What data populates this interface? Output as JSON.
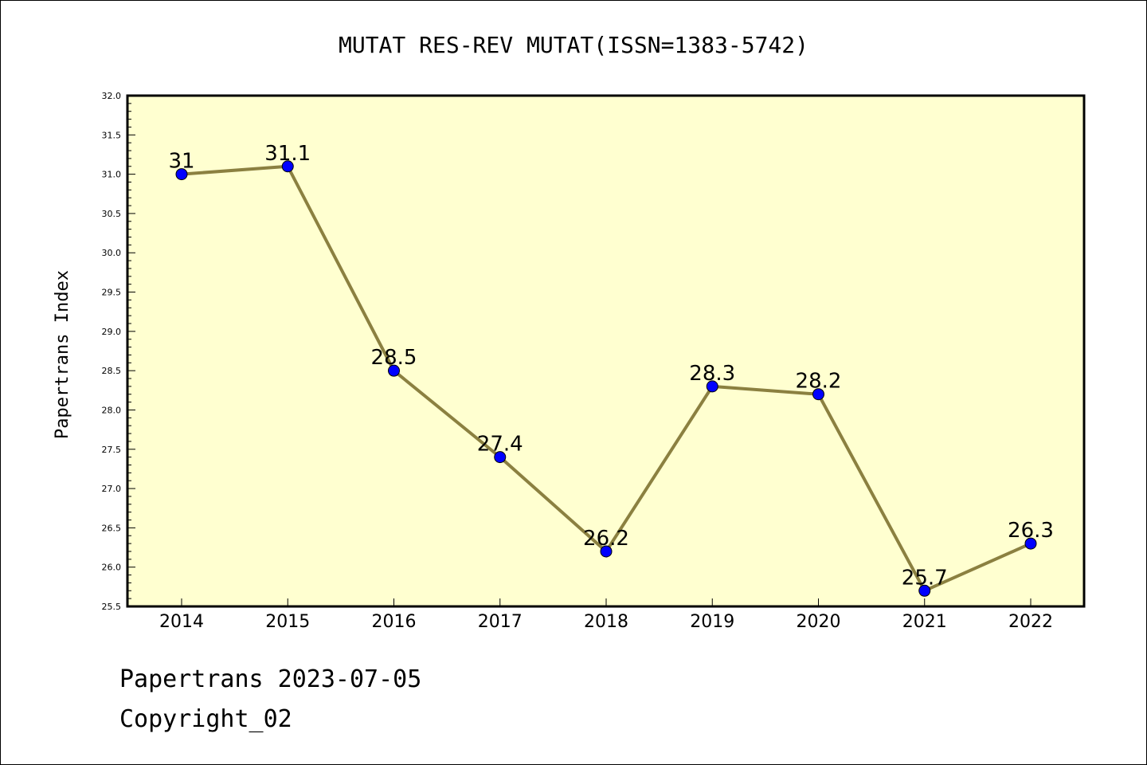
{
  "chart_data": {
    "type": "line",
    "title": "MUTAT RES-REV MUTAT(ISSN=1383-5742)",
    "xlabel": "",
    "ylabel": "Papertrans Index",
    "categories": [
      "2014",
      "2015",
      "2016",
      "2017",
      "2018",
      "2019",
      "2020",
      "2021",
      "2022"
    ],
    "series": [
      {
        "values": [
          31,
          31.1,
          28.5,
          27.4,
          26.2,
          28.3,
          28.2,
          25.7,
          26.3
        ],
        "data_labels": [
          "31",
          "31.1",
          "28.5",
          "27.4",
          "26.2",
          "28.3",
          "28.2",
          "25.7",
          "26.3"
        ]
      }
    ],
    "ylim": [
      25.5,
      32.0
    ],
    "yticks": [
      "25.5",
      "26.0",
      "26.5",
      "27.0",
      "27.5",
      "28.0",
      "28.5",
      "29.0",
      "29.5",
      "30.0",
      "30.5",
      "31.0",
      "31.5",
      "32.0"
    ],
    "grid": false,
    "colors": {
      "plot_background": "#ffffd0",
      "line": "#8b8040",
      "marker": "#0000ff"
    }
  },
  "footer": {
    "date_line": "Papertrans 2023-07-05",
    "copyright_line": "Copyright_02"
  }
}
